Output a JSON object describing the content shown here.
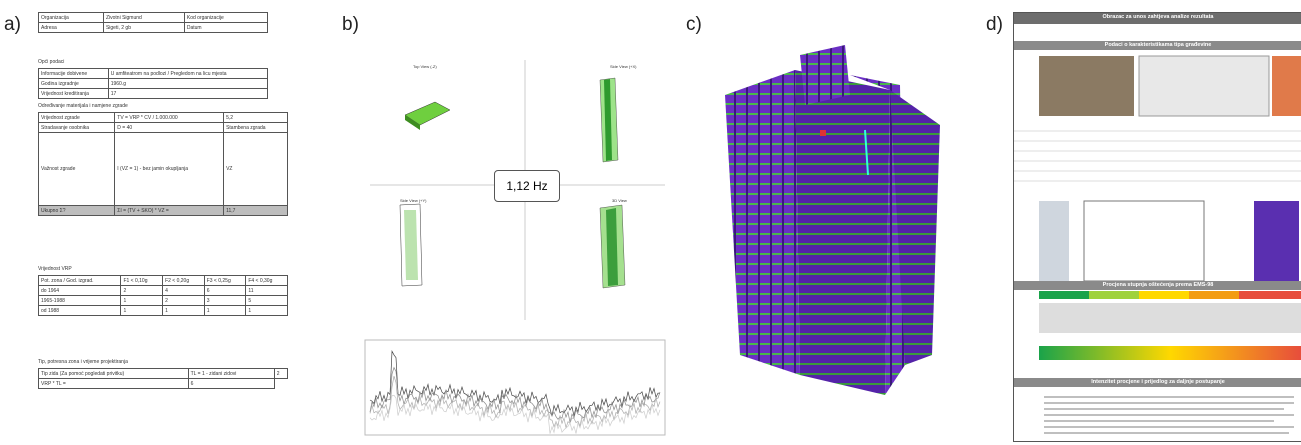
{
  "panels": [
    "a)",
    "b)",
    "c)",
    "d)"
  ],
  "table_a": {
    "head": [
      [
        "Organizacija",
        "Zivotni Sigmund",
        "Kod organizacije"
      ],
      [
        "Adresa",
        "Sigeti, 2 gb",
        "Datum"
      ]
    ],
    "general": {
      "title": "Opći podaci",
      "rows": [
        [
          "Informacije dobivene",
          "U amfiteatrom na podlozi / Pregledom na licu mjesta"
        ],
        [
          "Godina izgradnje",
          "1960.g"
        ],
        [
          "Vrijednost kreditiranja",
          "17"
        ]
      ]
    },
    "materials": {
      "title": "Određivanje materijala i namjene zgrade",
      "rows": [
        [
          "Vrijednost zgrade",
          "TV = VRP * CV / 1.000.000",
          "5,2"
        ],
        [
          "Stradavanje osobnika",
          "D = 40",
          "Stambena zgrada"
        ],
        [
          "Važnost zgrade",
          "I (VZ = 1) - bez jamin okupljanja",
          "VZ"
        ],
        [
          "Ukupno Σ?",
          "ΣI = (TV + SKO) * VZ =",
          "11,7"
        ]
      ]
    },
    "vrp": {
      "title": "Vrijednost VRP",
      "rows": [
        [
          "Pot. zona / God. izgrad.",
          "F1 < 0,10g",
          "F2 < 0,20g",
          "F3 < 0,25g",
          "F4 < 0,30g"
        ],
        [
          "do 1964",
          "2",
          "4",
          "6",
          "11"
        ],
        [
          "1965-1988",
          "1",
          "2",
          "3",
          "5"
        ],
        [
          "od 1988",
          "1",
          "1",
          "1",
          "1"
        ]
      ]
    },
    "type": {
      "title": "Tip, potresna zona i vrijeme projektiranja",
      "rows": [
        [
          "Tip zida (Za pomoć pogledati privitku)",
          "TL = 1 - zidani zidovi",
          "2"
        ],
        [
          "VRP * TL =",
          "6"
        ]
      ]
    }
  },
  "modal": {
    "frequency": "1,12 Hz",
    "views": [
      "Top View (-Z)",
      "Side View (+X)",
      "Side View (+Y)",
      "3D View"
    ]
  },
  "form": {
    "title": "Obrazac za unos zahtjeva analize rezultata",
    "sections": [
      "Podaci o karakteristikama tipa građevine",
      "Procjena stupnja oštećenja prema EMS-98",
      "Intenzitet procjene i prijedlog za daljnje postupanje"
    ]
  }
}
